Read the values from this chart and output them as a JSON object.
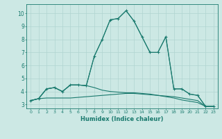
{
  "xlabel": "Humidex (Indice chaleur)",
  "xlim": [
    -0.5,
    23.5
  ],
  "ylim": [
    2.7,
    10.7
  ],
  "yticks": [
    3,
    4,
    5,
    6,
    7,
    8,
    9,
    10
  ],
  "xticks": [
    0,
    1,
    2,
    3,
    4,
    5,
    6,
    7,
    8,
    9,
    10,
    11,
    12,
    13,
    14,
    15,
    16,
    17,
    18,
    19,
    20,
    21,
    22,
    23
  ],
  "bg_color": "#cce8e4",
  "grid_color": "#b0d4d0",
  "line_color": "#1a7a6e",
  "curves": [
    {
      "x": [
        0,
        1,
        2,
        3,
        4,
        5,
        6,
        7,
        8,
        9,
        10,
        11,
        12,
        13,
        14,
        15,
        16,
        17,
        18,
        19,
        20,
        21,
        22,
        23
      ],
      "y": [
        3.3,
        3.45,
        3.5,
        3.5,
        3.5,
        3.5,
        3.55,
        3.6,
        3.65,
        3.7,
        3.75,
        3.8,
        3.85,
        3.85,
        3.8,
        3.75,
        3.7,
        3.65,
        3.6,
        3.5,
        3.4,
        3.3,
        2.85,
        2.85
      ],
      "marker": false
    },
    {
      "x": [
        0,
        1,
        2,
        3,
        4,
        5,
        6,
        7,
        8,
        9,
        10,
        11,
        12,
        13,
        14,
        15,
        16,
        17,
        18,
        19,
        20,
        21,
        22,
        23
      ],
      "y": [
        3.3,
        3.45,
        4.2,
        4.3,
        4.0,
        4.5,
        4.5,
        4.45,
        4.3,
        4.1,
        4.0,
        3.95,
        3.9,
        3.9,
        3.85,
        3.8,
        3.7,
        3.6,
        3.5,
        3.35,
        3.25,
        3.15,
        2.85,
        2.85
      ],
      "marker": false
    },
    {
      "x": [
        0,
        1,
        2,
        3,
        4,
        5,
        6,
        7,
        8,
        9,
        10,
        11,
        12,
        13,
        14,
        15,
        16,
        17,
        18,
        19,
        20,
        21,
        22,
        23
      ],
      "y": [
        3.3,
        3.45,
        4.2,
        4.3,
        4.0,
        4.5,
        4.5,
        4.45,
        6.7,
        8.0,
        9.5,
        9.6,
        10.2,
        9.4,
        8.2,
        7.0,
        7.0,
        8.2,
        4.2,
        4.2,
        3.8,
        3.7,
        2.85,
        2.85
      ],
      "marker": false
    },
    {
      "x": [
        0,
        1,
        2,
        3,
        4,
        5,
        6,
        7,
        8,
        9,
        10,
        11,
        12,
        13,
        14,
        15,
        16,
        17,
        18,
        19,
        20,
        21,
        22,
        23
      ],
      "y": [
        3.3,
        3.45,
        4.2,
        4.3,
        4.0,
        4.5,
        4.5,
        4.45,
        6.7,
        8.0,
        9.5,
        9.6,
        10.2,
        9.4,
        8.2,
        7.0,
        7.0,
        8.2,
        4.2,
        4.2,
        3.8,
        3.7,
        2.85,
        2.85
      ],
      "marker": true
    }
  ]
}
